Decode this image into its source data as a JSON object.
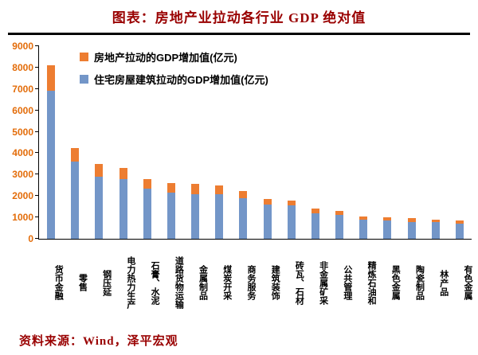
{
  "title": "图表：房地产业拉动各行业 GDP 绝对值",
  "source": "资料来源：Wind，泽平宏观",
  "legend": [
    {
      "label": "房地产拉动的GDP增加值(亿元)",
      "color": "#ED7D31"
    },
    {
      "label": "住宅房屋建筑拉动的GDP增加值(亿元)",
      "color": "#7396C8"
    }
  ],
  "chart_data": {
    "type": "bar",
    "stacked": true,
    "title": "图表：房地产业拉动各行业 GDP 绝对值",
    "xlabel": "",
    "ylabel": "",
    "ylim": [
      0,
      9000
    ],
    "ytick_step": 1000,
    "grid": false,
    "legend_position": "top-left-inside",
    "categories": [
      "货币金融",
      "零售",
      "钢压延",
      "电力热力生产",
      "石膏、水泥",
      "道路货物运输",
      "金属制品",
      "煤炭开采",
      "商务服务",
      "建筑装饰",
      "砖瓦、石材",
      "非金属矿采",
      "公共管理",
      "精炼石油和",
      "黑色金属",
      "陶瓷制品",
      "林产品",
      "有色金属"
    ],
    "series": [
      {
        "name": "住宅房屋建筑拉动的GDP增加值(亿元)",
        "color": "#7396C8",
        "values": [
          6900,
          3600,
          2900,
          2800,
          2350,
          2150,
          2100,
          2100,
          1900,
          1600,
          1550,
          1200,
          1100,
          900,
          850,
          800,
          780,
          700
        ]
      },
      {
        "name": "房地产拉动的GDP增加值(亿元)",
        "color": "#ED7D31",
        "values": [
          1200,
          650,
          600,
          500,
          450,
          450,
          450,
          400,
          350,
          250,
          250,
          200,
          200,
          150,
          150,
          150,
          120,
          150
        ]
      }
    ]
  }
}
